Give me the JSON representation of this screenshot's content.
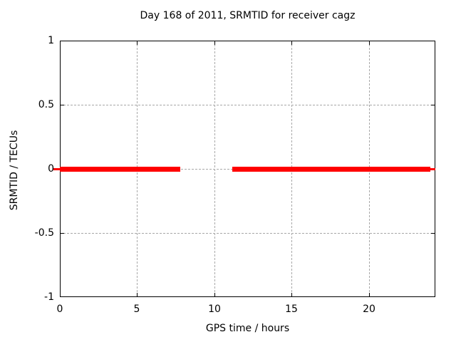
{
  "chart_data": {
    "type": "line",
    "title": "Day 168 of 2011, SRMTID for receiver cagz",
    "xlabel": "GPS time / hours",
    "ylabel": "SRMTID / TECUs",
    "xlim": [
      0,
      24.3
    ],
    "ylim": [
      -1,
      1
    ],
    "xticks": [
      0,
      5,
      10,
      15,
      20
    ],
    "yticks": [
      1,
      0.5,
      0,
      -0.5,
      -1
    ],
    "xtick_labels": [
      "0",
      "5",
      "10",
      "15",
      "20"
    ],
    "ytick_labels": [
      "1",
      "0.5",
      "0",
      "-0.5",
      "-1"
    ],
    "grid": true,
    "grid_color": "#a8a8a8",
    "frame_color": "#000000",
    "background_color": "#ffffff",
    "legend": "none",
    "series": [
      {
        "name": "SRMTID",
        "color": "#ff0000",
        "y_value": 0,
        "segments": [
          {
            "x1": 0,
            "x2": 7.78,
            "y": 0,
            "lw": 7
          },
          {
            "x1": 11.17,
            "x2": 23.98,
            "y": 0,
            "lw": 7
          },
          {
            "x1": 23.98,
            "x2": 24.3,
            "y": 0,
            "lw": 3
          },
          {
            "x1": -0.42,
            "x2": 0,
            "y": 0,
            "lw": 3
          }
        ],
        "gaps": [
          {
            "from": 7.78,
            "to": 11.17
          }
        ]
      }
    ]
  }
}
